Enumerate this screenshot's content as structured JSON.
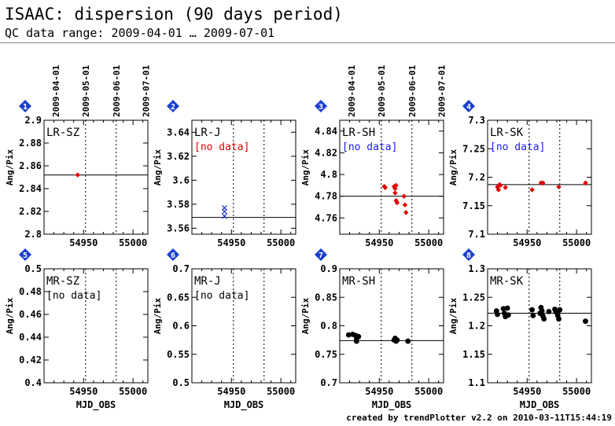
{
  "header": {
    "title": "ISAAC: dispersion (90 days period)",
    "range": "QC data range: 2009-04-01 … 2009-07-01"
  },
  "footer": "created by trendPlotter v2.2 on 2010-03-11T15:44:19",
  "colors": {
    "marker_badge": "#1a3fcf",
    "no_data_red": "#e00000",
    "no_data_blue": "#1a1aff",
    "red_points": "#e00000",
    "blue_points": "#1a2fd0",
    "black_points": "#000000"
  },
  "chart_data": [
    {
      "type": "scatter",
      "panel_number": "1",
      "label": "LR-SZ",
      "no_data": "",
      "ylabel": "Ang/Pix",
      "xlabel": "",
      "ylim": [
        2.8,
        2.9
      ],
      "yticks": [
        "2.9",
        "2.88",
        "2.86",
        "2.84",
        "2.82",
        "2.8"
      ],
      "xticks": [
        "54950",
        "55000"
      ],
      "xlim": [
        54910,
        55015
      ],
      "date_ticks": [
        "2009-04-01",
        "2009-05-01",
        "2009-06-01",
        "2009-07-01"
      ],
      "median": 2.852,
      "marker": "dot",
      "color": "red",
      "points": [
        [
          54944,
          2.852
        ]
      ]
    },
    {
      "type": "scatter",
      "panel_number": "2",
      "label": "LR-J",
      "no_data": "[no data]",
      "no_data_color": "red",
      "ylabel": "Ang/Pix",
      "xlabel": "",
      "ylim": [
        3.555,
        3.65
      ],
      "yticks": [
        "3.64",
        "3.62",
        "3.6",
        "3.58",
        "3.56"
      ],
      "xticks": [
        "54950",
        "55000"
      ],
      "xlim": [
        54910,
        55015
      ],
      "date_ticks": [],
      "median": 3.569,
      "marker": "cross",
      "color": "blue",
      "points": [
        [
          54943,
          3.577
        ],
        [
          54943,
          3.574
        ],
        [
          54943,
          3.57
        ]
      ]
    },
    {
      "type": "scatter",
      "panel_number": "3",
      "label": "LR-SH",
      "no_data": "[no data]",
      "no_data_color": "blue",
      "ylabel": "Ang/Pix",
      "xlabel": "",
      "ylim": [
        4.745,
        4.85
      ],
      "yticks": [
        "4.84",
        "4.82",
        "4.8",
        "4.78",
        "4.76"
      ],
      "xticks": [
        "54950",
        "55000"
      ],
      "xlim": [
        54910,
        55015
      ],
      "date_ticks": [
        "2009-04-01",
        "2009-05-01",
        "2009-06-01",
        "2009-07-01"
      ],
      "median": 4.78,
      "marker": "dot",
      "color": "red",
      "points": [
        [
          54955,
          4.789
        ],
        [
          54956,
          4.788
        ],
        [
          54965,
          4.789
        ],
        [
          54966,
          4.787
        ],
        [
          54967,
          4.79
        ],
        [
          54966,
          4.783
        ],
        [
          54967,
          4.776
        ],
        [
          54968,
          4.774
        ],
        [
          54975,
          4.78
        ],
        [
          54976,
          4.772
        ],
        [
          54977,
          4.765
        ]
      ]
    },
    {
      "type": "scatter",
      "panel_number": "4",
      "label": "LR-SK",
      "no_data": "[no data]",
      "no_data_color": "blue",
      "ylabel": "Ang/Pix",
      "xlabel": "",
      "ylim": [
        7.1,
        7.3
      ],
      "yticks": [
        "7.3",
        "7.25",
        "7.2",
        "7.15",
        "7.1"
      ],
      "xticks": [
        "54950",
        "55000"
      ],
      "xlim": [
        54910,
        55015
      ],
      "date_ticks": [],
      "median": 7.187,
      "marker": "dot",
      "color": "red",
      "points": [
        [
          54920,
          7.183
        ],
        [
          54921,
          7.178
        ],
        [
          54922,
          7.187
        ],
        [
          54923,
          7.186
        ],
        [
          54928,
          7.182
        ],
        [
          54955,
          7.178
        ],
        [
          54964,
          7.19
        ],
        [
          54966,
          7.19
        ],
        [
          54982,
          7.183
        ],
        [
          55009,
          7.19
        ]
      ]
    },
    {
      "type": "scatter",
      "panel_number": "5",
      "label": "MR-SZ",
      "no_data": "[no data]",
      "no_data_color": "black",
      "ylabel": "Ang/Pix",
      "xlabel": "MJD_OBS",
      "ylim": [
        0.4,
        0.5
      ],
      "yticks": [
        "0.5",
        "0.48",
        "0.46",
        "0.44",
        "0.42",
        "0.4"
      ],
      "xticks": [
        "54950",
        "55000"
      ],
      "xlim": [
        54910,
        55015
      ],
      "date_ticks": [],
      "median": null,
      "marker": "dot",
      "color": "black",
      "points": []
    },
    {
      "type": "scatter",
      "panel_number": "6",
      "label": "MR-J",
      "no_data": "[no data]",
      "no_data_color": "black",
      "ylabel": "Ang/Pix",
      "xlabel": "MJD_OBS",
      "ylim": [
        0.5,
        0.7
      ],
      "yticks": [
        "0.7",
        "0.65",
        "0.6",
        "0.55",
        "0.5"
      ],
      "xticks": [
        "54950",
        "55000"
      ],
      "xlim": [
        54910,
        55015
      ],
      "date_ticks": [],
      "median": null,
      "marker": "dot",
      "color": "black",
      "points": []
    },
    {
      "type": "scatter",
      "panel_number": "7",
      "label": "MR-SH",
      "no_data": "",
      "ylabel": "Ang/Pix",
      "xlabel": "MJD_OBS",
      "ylim": [
        0.7,
        0.9
      ],
      "yticks": [
        "0.9",
        "0.85",
        "0.8",
        "0.75",
        "0.7"
      ],
      "xticks": [
        "54950",
        "55000"
      ],
      "xlim": [
        54910,
        55015
      ],
      "date_ticks": [],
      "median": 0.774,
      "marker": "dot",
      "color": "black",
      "points": [
        [
          54919,
          0.784
        ],
        [
          54923,
          0.785
        ],
        [
          54926,
          0.783
        ],
        [
          54927,
          0.778
        ],
        [
          54927,
          0.773
        ],
        [
          54929,
          0.781
        ],
        [
          54965,
          0.775
        ],
        [
          54966,
          0.778
        ],
        [
          54967,
          0.773
        ],
        [
          54968,
          0.775
        ],
        [
          54979,
          0.773
        ]
      ]
    },
    {
      "type": "scatter",
      "panel_number": "8",
      "label": "MR-SK",
      "no_data": "",
      "ylabel": "Ang/Pix",
      "xlabel": "MJD_OBS",
      "ylim": [
        1.1,
        1.3
      ],
      "yticks": [
        "1.3",
        "1.25",
        "1.2",
        "1.15",
        "1.1"
      ],
      "xticks": [
        "54950",
        "55000"
      ],
      "xlim": [
        54910,
        55015
      ],
      "date_ticks": [],
      "median": 1.222,
      "marker": "dot",
      "color": "black",
      "points": [
        [
          54919,
          1.226
        ],
        [
          54920,
          1.22
        ],
        [
          54926,
          1.23
        ],
        [
          54927,
          1.222
        ],
        [
          54928,
          1.216
        ],
        [
          54930,
          1.231
        ],
        [
          54931,
          1.219
        ],
        [
          54955,
          1.228
        ],
        [
          54956,
          1.218
        ],
        [
          54963,
          1.222
        ],
        [
          54964,
          1.232
        ],
        [
          54965,
          1.226
        ],
        [
          54966,
          1.217
        ],
        [
          54967,
          1.212
        ],
        [
          54972,
          1.225
        ],
        [
          54978,
          1.229
        ],
        [
          54979,
          1.225
        ],
        [
          54980,
          1.223
        ],
        [
          54981,
          1.218
        ],
        [
          54982,
          1.212
        ],
        [
          54983,
          1.228
        ],
        [
          55009,
          1.208
        ]
      ]
    }
  ]
}
